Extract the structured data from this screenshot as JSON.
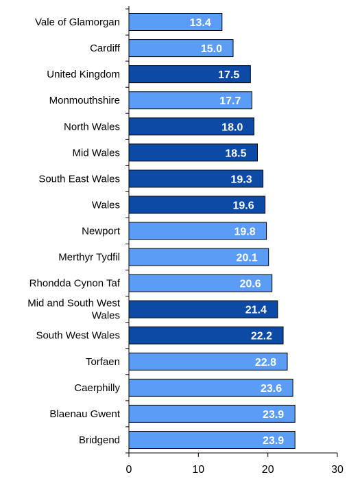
{
  "chart_data": {
    "type": "bar",
    "orientation": "horizontal",
    "title": "",
    "xlabel": "",
    "ylabel": "",
    "xlim": [
      0,
      30
    ],
    "xticks": [
      "0",
      "10",
      "20",
      "30"
    ],
    "grid": false,
    "legend": "none",
    "categories": [
      "Vale of Glamorgan",
      "Cardiff",
      "United Kingdom",
      "Monmouthshire",
      "North Wales",
      "Mid Wales",
      "South East Wales",
      "Wales",
      "Newport",
      "Merthyr Tydfil",
      "Rhondda Cynon Taf",
      "Mid and South West Wales",
      "South West Wales",
      "Torfaen",
      "Caerphilly",
      "Blaenau Gwent",
      "Bridgend"
    ],
    "value_labels": [
      "13.4",
      "15.0",
      "17.5",
      "17.7",
      "18.0",
      "18.5",
      "19.3",
      "19.6",
      "19.8",
      "20.1",
      "20.6",
      "21.4",
      "22.2",
      "22.8",
      "23.6",
      "23.9",
      "23.9"
    ],
    "values": [
      13.4,
      15.0,
      17.5,
      17.7,
      18.0,
      18.5,
      19.3,
      19.6,
      19.8,
      20.1,
      20.6,
      21.4,
      22.2,
      22.8,
      23.6,
      23.9,
      23.9
    ],
    "highlight": [
      false,
      false,
      true,
      false,
      true,
      true,
      true,
      true,
      false,
      false,
      false,
      true,
      true,
      false,
      false,
      false,
      false
    ],
    "colors": {
      "default": "#5b9cf6",
      "highlight": "#0d4aa6",
      "outline": "#000000",
      "axis": "#000000"
    }
  }
}
